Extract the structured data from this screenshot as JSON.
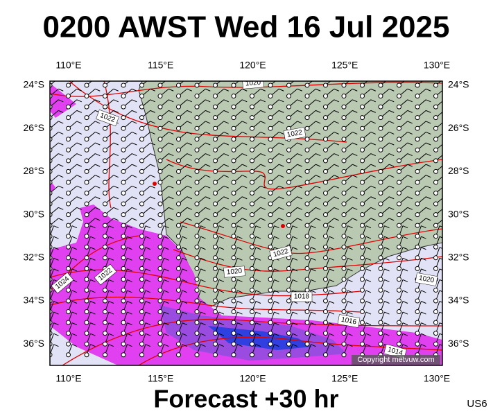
{
  "header": {
    "title": "0200 AWST Wed 16 Jul 2025"
  },
  "map": {
    "lon_labels": [
      "110°E",
      "115°E",
      "120°E",
      "125°E",
      "130°E"
    ],
    "lat_labels": [
      "24°S",
      "26°S",
      "28°S",
      "30°S",
      "32°S",
      "34°S",
      "36°S"
    ],
    "isobar_labels": [
      "1020",
      "1022",
      "1022",
      "1022",
      "1020",
      "1018",
      "1016",
      "1014",
      "1020",
      "1024",
      "1022"
    ],
    "copyright": "Copyright metvuw.com"
  },
  "footer": {
    "forecast": "Forecast +30 hr",
    "code": "US6"
  }
}
